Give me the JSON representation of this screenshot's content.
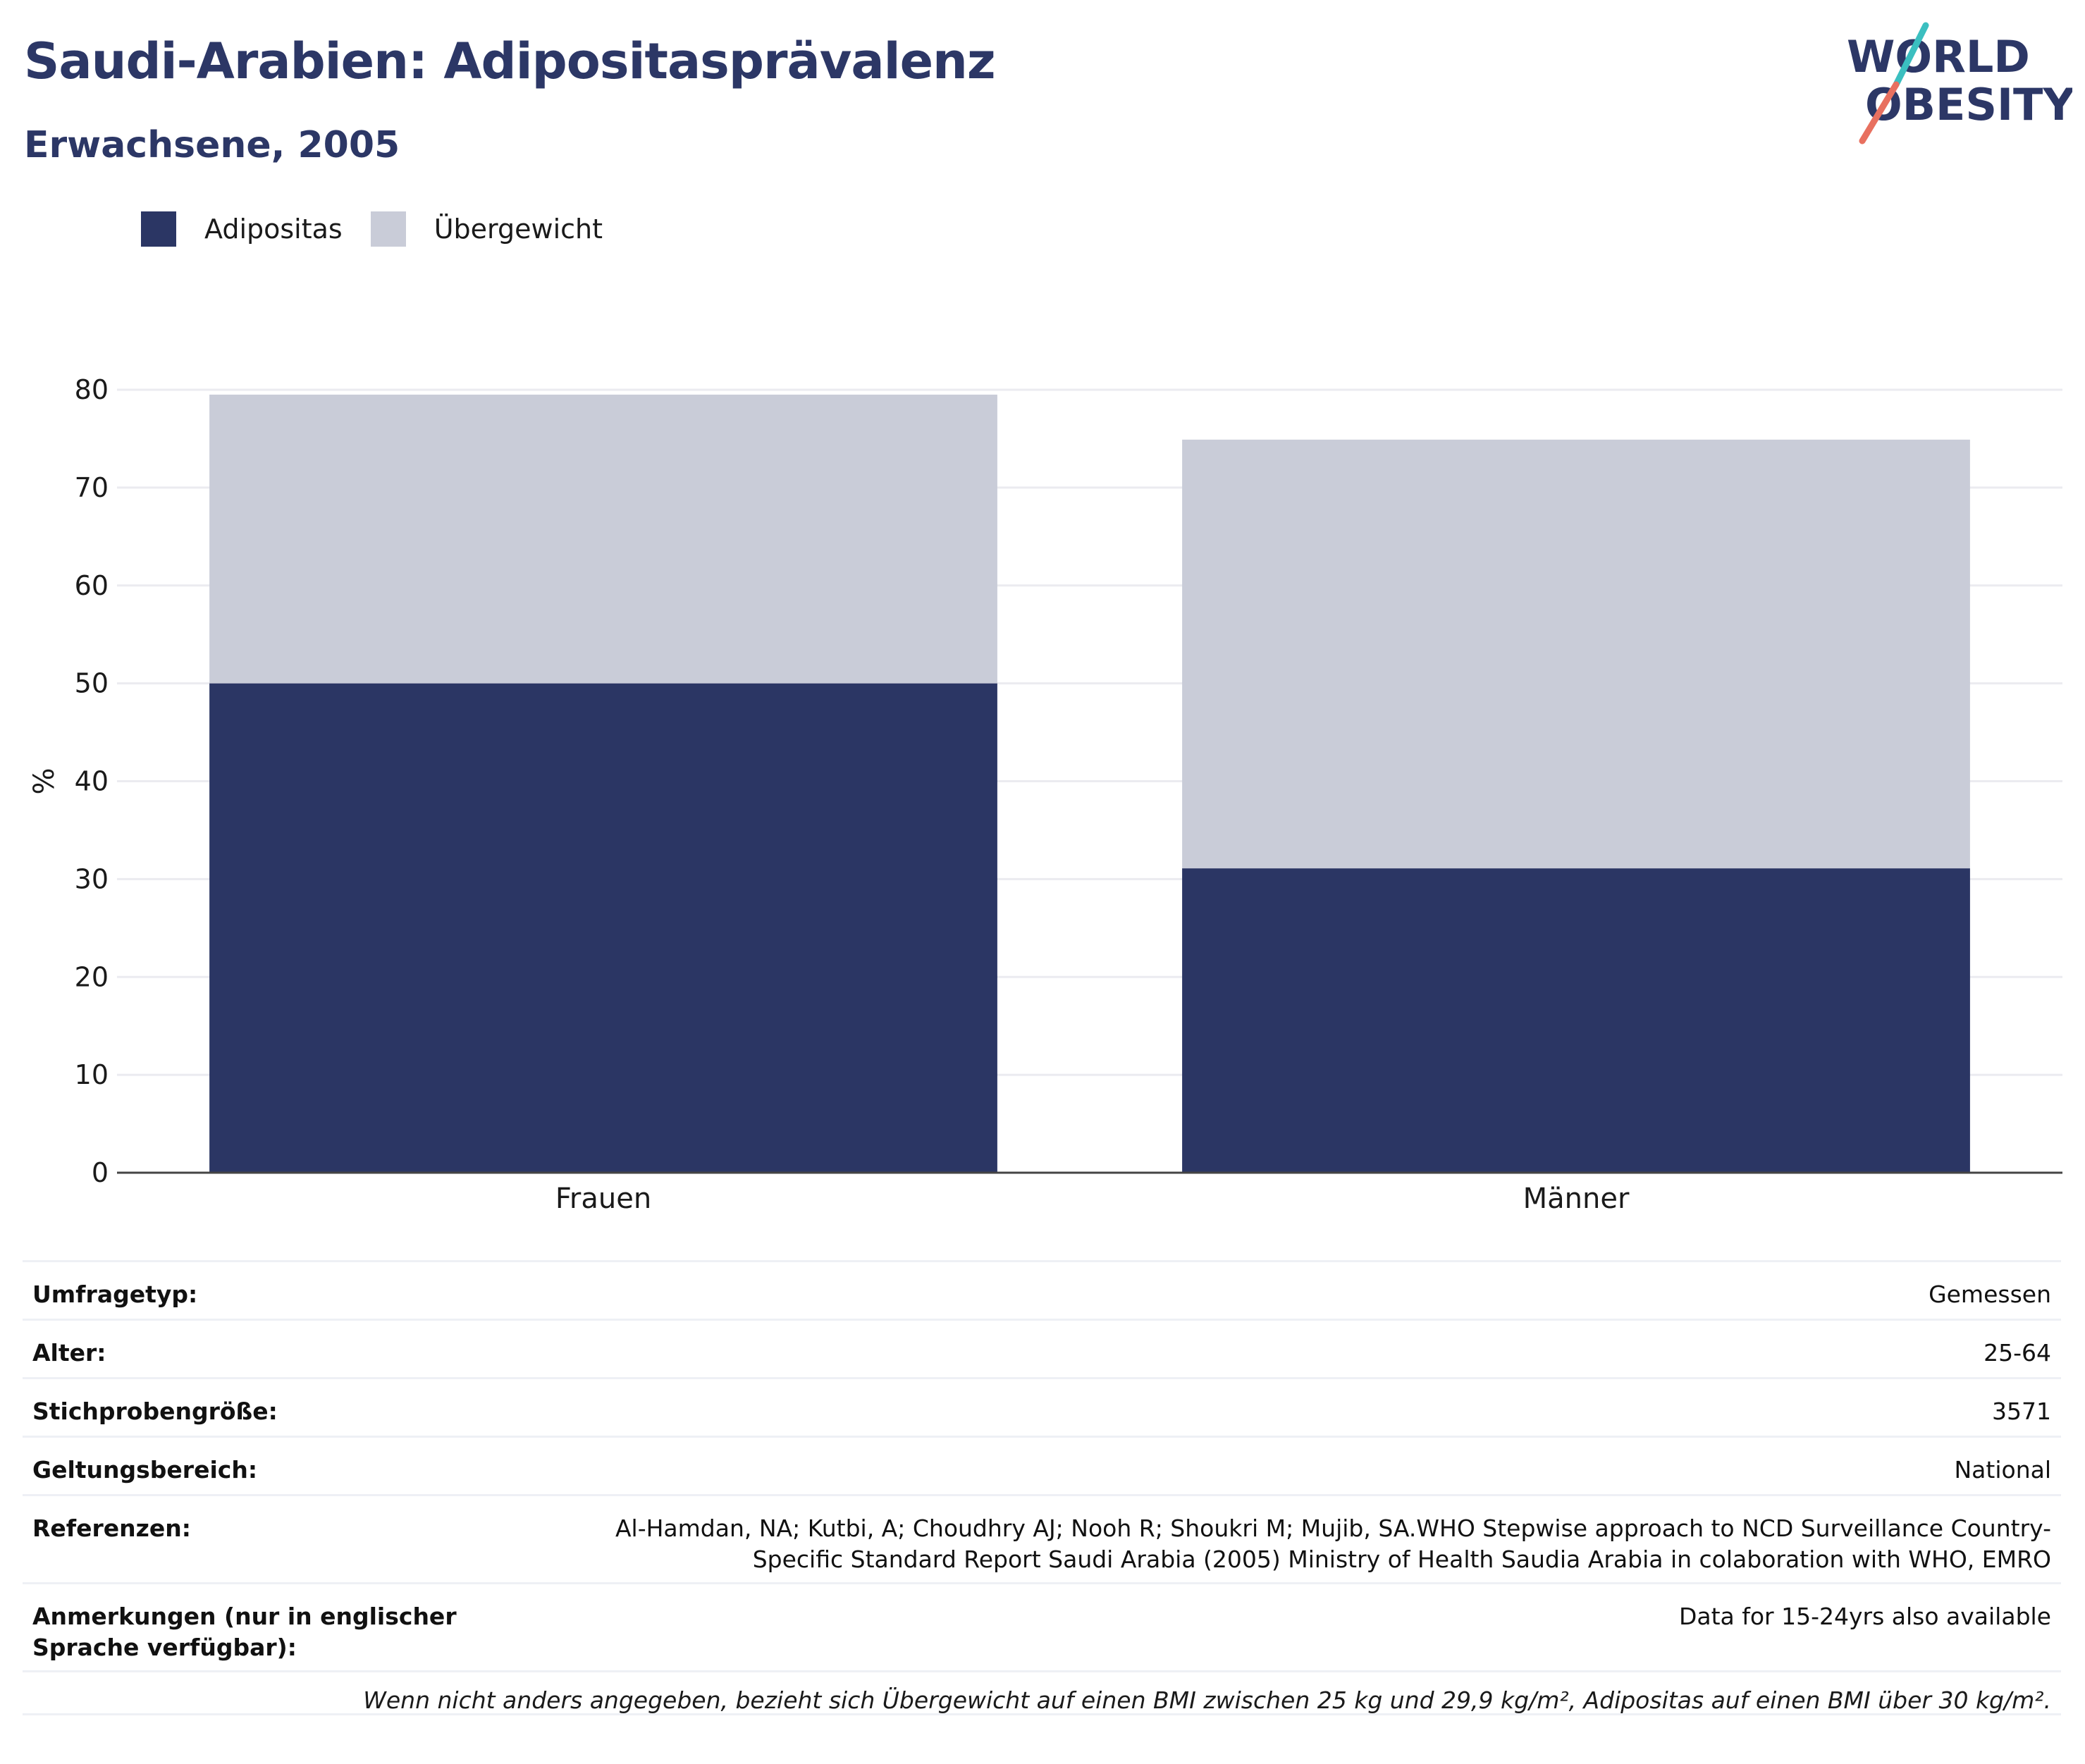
{
  "header": {
    "title": "Saudi-Arabien: Adipositasprävalenz",
    "subtitle": "Erwachsene, 2005"
  },
  "logo": {
    "line1": "WORLD",
    "line2": "OBESITY",
    "colors": {
      "text": "#2c3766",
      "slash_top": "#3bbfc0",
      "slash_bottom": "#e8705f"
    }
  },
  "legend": [
    {
      "label": "Adipositas",
      "color": "#2b3664"
    },
    {
      "label": "Übergewicht",
      "color": "#c9ccd8"
    }
  ],
  "chart_data": {
    "type": "bar",
    "stacked": true,
    "categories": [
      "Frauen",
      "Männer"
    ],
    "series": [
      {
        "name": "Adipositas",
        "values": [
          50.0,
          31.1
        ],
        "color": "#2b3664"
      },
      {
        "name": "Übergewicht",
        "values": [
          29.5,
          43.8
        ],
        "color": "#c9ccd8"
      }
    ],
    "ylabel": "%",
    "ylim": [
      0,
      80
    ],
    "yticks": [
      0,
      10,
      20,
      30,
      40,
      50,
      60,
      70,
      80
    ],
    "grid": true,
    "legend_position": "top-left"
  },
  "info": [
    {
      "label": "Umfragetyp:",
      "value": "Gemessen"
    },
    {
      "label": "Alter:",
      "value": "25-64"
    },
    {
      "label": "Stichprobengröße:",
      "value": "3571"
    },
    {
      "label": "Geltungsbereich:",
      "value": "National"
    },
    {
      "label": "Referenzen:",
      "value": "Al-Hamdan, NA; Kutbi, A; Choudhry AJ; Nooh R; Shoukri M; Mujib, SA.WHO Stepwise approach to NCD Surveillance Country-Specific Standard Report Saudi Arabia (2005) Ministry of Health Saudia Arabia in colaboration with WHO, EMRO"
    },
    {
      "label": "Anmerkungen (nur in englischer Sprache verfügbar):",
      "value": "Data for 15-24yrs also available"
    }
  ],
  "footnote": "Wenn nicht anders angegeben, bezieht sich Übergewicht auf einen BMI zwischen 25 kg und 29,9 kg/m², Adipositas auf einen BMI über 30 kg/m²."
}
